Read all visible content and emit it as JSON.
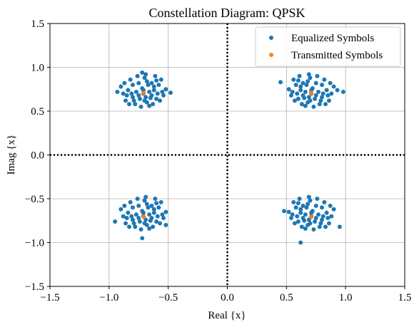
{
  "chart_data": {
    "type": "scatter",
    "title": "Constellation Diagram: QPSK",
    "xlabel": "Real {x}",
    "ylabel": "Imag {x}",
    "xlim": [
      -1.5,
      1.5
    ],
    "ylim": [
      -1.5,
      1.5
    ],
    "x_ticks": [
      -1.5,
      -1.0,
      -0.5,
      0.0,
      0.5,
      1.0,
      1.5
    ],
    "y_ticks": [
      -1.5,
      -1.0,
      -0.5,
      0.0,
      0.5,
      1.0,
      1.5
    ],
    "x_tick_labels": [
      "−1.5",
      "−1.0",
      "−0.5",
      "0.0",
      "0.5",
      "1.0",
      "1.5"
    ],
    "y_tick_labels": [
      "−1.5",
      "−1.0",
      "−0.5",
      "0.0",
      "0.5",
      "1.0",
      "1.5"
    ],
    "grid": true,
    "legend_position": "top-right",
    "zero_lines": {
      "style": "dotted",
      "color": "#000000"
    },
    "series": [
      {
        "name": "Equalized Symbols",
        "color": "#1f77b4",
        "points": [
          [
            -0.71,
            0.7
          ],
          [
            -0.62,
            0.78
          ],
          [
            -0.8,
            0.66
          ],
          [
            -0.68,
            0.6
          ],
          [
            -0.75,
            0.82
          ],
          [
            -0.59,
            0.7
          ],
          [
            -0.84,
            0.74
          ],
          [
            -0.7,
            0.88
          ],
          [
            -0.65,
            0.65
          ],
          [
            -0.78,
            0.58
          ],
          [
            -0.55,
            0.72
          ],
          [
            -0.88,
            0.7
          ],
          [
            -0.72,
            0.76
          ],
          [
            -0.6,
            0.85
          ],
          [
            -0.82,
            0.86
          ],
          [
            -0.66,
            0.72
          ],
          [
            -0.74,
            0.64
          ],
          [
            -0.57,
            0.62
          ],
          [
            -0.86,
            0.62
          ],
          [
            -0.69,
            0.92
          ],
          [
            -0.77,
            0.72
          ],
          [
            -0.63,
            0.58
          ],
          [
            -0.52,
            0.75
          ],
          [
            -0.9,
            0.78
          ],
          [
            -0.73,
            0.55
          ],
          [
            -0.61,
            0.9
          ],
          [
            -0.8,
            0.8
          ],
          [
            -0.67,
            0.8
          ],
          [
            -0.58,
            0.8
          ],
          [
            -0.85,
            0.68
          ],
          [
            -0.76,
            0.9
          ],
          [
            -0.64,
            0.68
          ],
          [
            -0.7,
            0.62
          ],
          [
            -0.79,
            0.62
          ],
          [
            -0.54,
            0.68
          ],
          [
            -0.68,
            0.84
          ],
          [
            -0.83,
            0.58
          ],
          [
            -0.62,
            0.74
          ],
          [
            -0.48,
            0.71
          ],
          [
            -0.93,
            0.72
          ],
          [
            -0.72,
            0.94
          ],
          [
            -0.66,
            0.56
          ],
          [
            -0.75,
            0.68
          ],
          [
            -0.6,
            0.64
          ],
          [
            -0.87,
            0.82
          ],
          [
            -0.56,
            0.86
          ],
          [
            -0.71,
            0.74
          ],
          [
            -0.81,
            0.7
          ],
          [
            -0.64,
            0.82
          ],
          [
            -0.69,
            0.66
          ],
          [
            0.71,
            0.7
          ],
          [
            0.62,
            0.78
          ],
          [
            0.8,
            0.66
          ],
          [
            0.68,
            0.6
          ],
          [
            0.75,
            0.82
          ],
          [
            0.59,
            0.7
          ],
          [
            0.84,
            0.74
          ],
          [
            0.7,
            0.88
          ],
          [
            0.65,
            0.65
          ],
          [
            0.78,
            0.58
          ],
          [
            0.55,
            0.72
          ],
          [
            0.88,
            0.7
          ],
          [
            0.72,
            0.76
          ],
          [
            0.6,
            0.85
          ],
          [
            0.82,
            0.86
          ],
          [
            0.66,
            0.72
          ],
          [
            0.74,
            0.64
          ],
          [
            0.57,
            0.62
          ],
          [
            0.86,
            0.62
          ],
          [
            0.69,
            0.92
          ],
          [
            0.77,
            0.72
          ],
          [
            0.63,
            0.58
          ],
          [
            0.52,
            0.75
          ],
          [
            0.9,
            0.78
          ],
          [
            0.73,
            0.55
          ],
          [
            0.61,
            0.9
          ],
          [
            0.8,
            0.8
          ],
          [
            0.67,
            0.8
          ],
          [
            0.58,
            0.8
          ],
          [
            0.85,
            0.68
          ],
          [
            0.76,
            0.9
          ],
          [
            0.64,
            0.68
          ],
          [
            0.7,
            0.62
          ],
          [
            0.79,
            0.62
          ],
          [
            0.54,
            0.68
          ],
          [
            0.68,
            0.84
          ],
          [
            0.83,
            0.58
          ],
          [
            0.62,
            0.74
          ],
          [
            0.45,
            0.83
          ],
          [
            0.98,
            0.72
          ],
          [
            0.93,
            0.74
          ],
          [
            0.66,
            0.56
          ],
          [
            0.75,
            0.68
          ],
          [
            0.6,
            0.64
          ],
          [
            0.87,
            0.82
          ],
          [
            0.56,
            0.86
          ],
          [
            0.71,
            0.74
          ],
          [
            0.81,
            0.7
          ],
          [
            0.64,
            0.82
          ],
          [
            0.69,
            0.66
          ],
          [
            -0.71,
            -0.7
          ],
          [
            -0.62,
            -0.62
          ],
          [
            -0.8,
            -0.74
          ],
          [
            -0.68,
            -0.8
          ],
          [
            -0.75,
            -0.58
          ],
          [
            -0.59,
            -0.7
          ],
          [
            -0.84,
            -0.66
          ],
          [
            -0.7,
            -0.52
          ],
          [
            -0.65,
            -0.75
          ],
          [
            -0.78,
            -0.82
          ],
          [
            -0.55,
            -0.68
          ],
          [
            -0.88,
            -0.7
          ],
          [
            -0.72,
            -0.64
          ],
          [
            -0.6,
            -0.55
          ],
          [
            -0.82,
            -0.54
          ],
          [
            -0.66,
            -0.68
          ],
          [
            -0.74,
            -0.76
          ],
          [
            -0.57,
            -0.78
          ],
          [
            -0.86,
            -0.78
          ],
          [
            -0.69,
            -0.48
          ],
          [
            -0.77,
            -0.68
          ],
          [
            -0.63,
            -0.82
          ],
          [
            -0.52,
            -0.65
          ],
          [
            -0.9,
            -0.62
          ],
          [
            -0.73,
            -0.85
          ],
          [
            -0.61,
            -0.5
          ],
          [
            -0.8,
            -0.6
          ],
          [
            -0.67,
            -0.6
          ],
          [
            -0.58,
            -0.6
          ],
          [
            -0.85,
            -0.72
          ],
          [
            -0.76,
            -0.5
          ],
          [
            -0.64,
            -0.72
          ],
          [
            -0.7,
            -0.78
          ],
          [
            -0.79,
            -0.78
          ],
          [
            -0.54,
            -0.72
          ],
          [
            -0.68,
            -0.56
          ],
          [
            -0.83,
            -0.82
          ],
          [
            -0.62,
            -0.66
          ],
          [
            -0.95,
            -0.76
          ],
          [
            -0.72,
            -0.95
          ],
          [
            -0.52,
            -0.8
          ],
          [
            -0.66,
            -0.84
          ],
          [
            -0.75,
            -0.72
          ],
          [
            -0.6,
            -0.76
          ],
          [
            -0.87,
            -0.58
          ],
          [
            -0.56,
            -0.54
          ],
          [
            -0.71,
            -0.66
          ],
          [
            -0.81,
            -0.7
          ],
          [
            -0.64,
            -0.58
          ],
          [
            -0.69,
            -0.74
          ],
          [
            0.71,
            -0.7
          ],
          [
            0.62,
            -0.62
          ],
          [
            0.8,
            -0.74
          ],
          [
            0.68,
            -0.8
          ],
          [
            0.75,
            -0.58
          ],
          [
            0.59,
            -0.7
          ],
          [
            0.84,
            -0.66
          ],
          [
            0.7,
            -0.52
          ],
          [
            0.65,
            -0.75
          ],
          [
            0.78,
            -0.82
          ],
          [
            0.55,
            -0.68
          ],
          [
            0.88,
            -0.7
          ],
          [
            0.72,
            -0.64
          ],
          [
            0.6,
            -0.55
          ],
          [
            0.82,
            -0.54
          ],
          [
            0.66,
            -0.68
          ],
          [
            0.74,
            -0.76
          ],
          [
            0.57,
            -0.78
          ],
          [
            0.86,
            -0.78
          ],
          [
            0.69,
            -0.48
          ],
          [
            0.77,
            -0.68
          ],
          [
            0.63,
            -0.82
          ],
          [
            0.52,
            -0.65
          ],
          [
            0.9,
            -0.62
          ],
          [
            0.73,
            -0.85
          ],
          [
            0.61,
            -0.5
          ],
          [
            0.8,
            -0.6
          ],
          [
            0.67,
            -0.6
          ],
          [
            0.58,
            -0.6
          ],
          [
            0.85,
            -0.72
          ],
          [
            0.76,
            -0.5
          ],
          [
            0.64,
            -0.72
          ],
          [
            0.7,
            -0.78
          ],
          [
            0.79,
            -0.78
          ],
          [
            0.54,
            -0.72
          ],
          [
            0.68,
            -0.56
          ],
          [
            0.83,
            -0.82
          ],
          [
            0.62,
            -0.66
          ],
          [
            0.95,
            -0.82
          ],
          [
            0.62,
            -1.0
          ],
          [
            0.48,
            -0.64
          ],
          [
            0.66,
            -0.84
          ],
          [
            0.75,
            -0.72
          ],
          [
            0.6,
            -0.76
          ],
          [
            0.87,
            -0.58
          ],
          [
            0.56,
            -0.54
          ],
          [
            0.71,
            -0.66
          ],
          [
            0.81,
            -0.7
          ],
          [
            0.64,
            -0.58
          ],
          [
            0.69,
            -0.74
          ]
        ]
      },
      {
        "name": "Transmitted Symbols",
        "color": "#ff7f0e",
        "points": [
          [
            -0.707,
            0.707
          ],
          [
            0.707,
            0.707
          ],
          [
            -0.707,
            -0.707
          ],
          [
            0.707,
            -0.707
          ]
        ]
      }
    ]
  }
}
